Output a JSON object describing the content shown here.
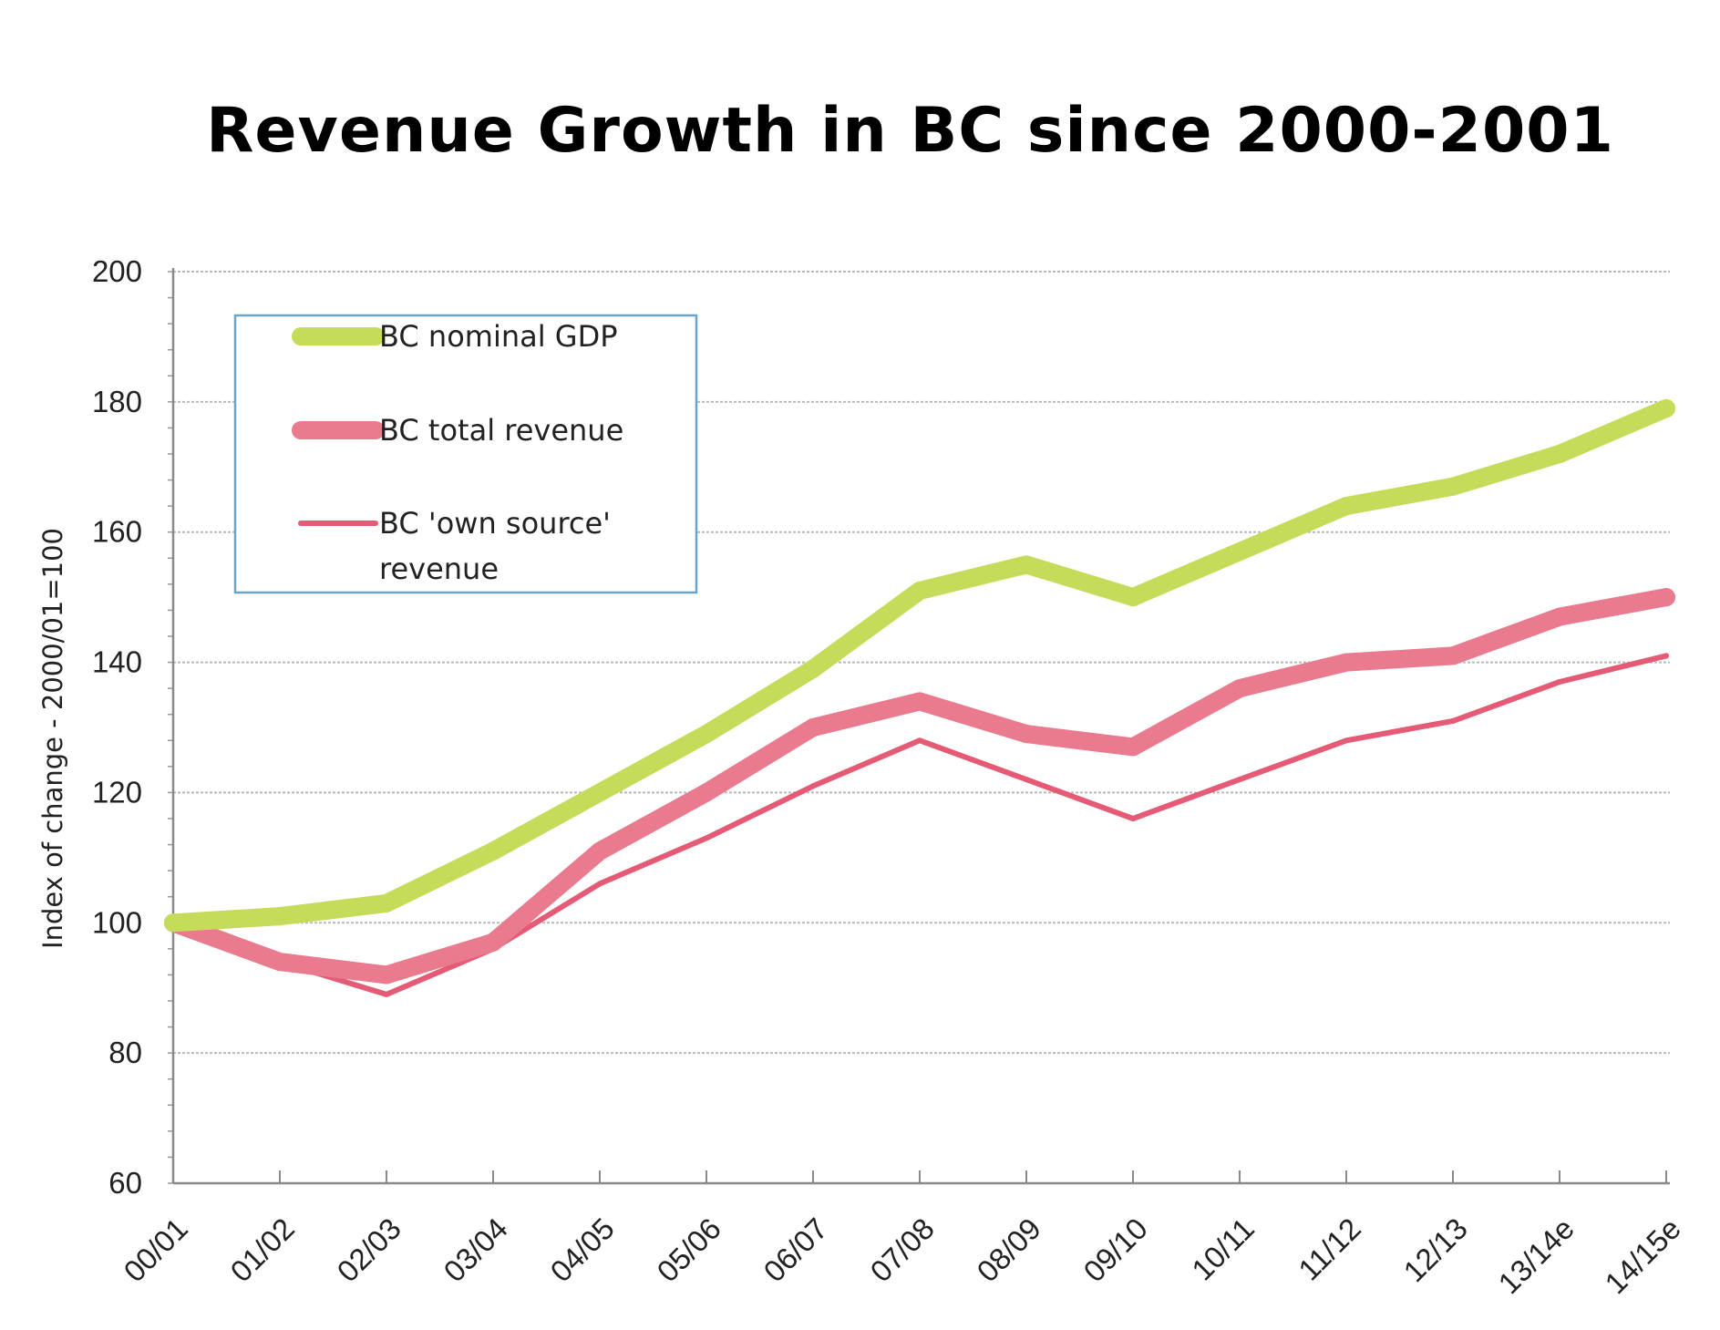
{
  "chart_data": {
    "type": "line",
    "title": "Revenue Growth in BC since 2000-2001",
    "ylabel": "Index of change  - 2000/01=100",
    "xlabel": "",
    "ylim": [
      60,
      200
    ],
    "yticks": [
      "60",
      "80",
      "100",
      "120",
      "140",
      "160",
      "180",
      "200"
    ],
    "grid": "horizontal",
    "legend_position": "top-left",
    "categories": [
      "00/01",
      "01/02",
      "02/03",
      "03/04",
      "04/05",
      "05/06",
      "06/07",
      "07/08",
      "08/09",
      "09/10",
      "10/11",
      "11/12",
      "12/13",
      "13/14e",
      "14/15e"
    ],
    "series": [
      {
        "name": "BC nominal GDP",
        "values": [
          100,
          101,
          103,
          111,
          120,
          129,
          139,
          151,
          155,
          150,
          157,
          164,
          167,
          172,
          179
        ],
        "color": "#c5dc5a"
      },
      {
        "name": "BC total revenue",
        "values": [
          100,
          94,
          92,
          97,
          111,
          120,
          130,
          134,
          129,
          127,
          136,
          140,
          141,
          147,
          150
        ],
        "color": "#ea7a8e"
      },
      {
        "name": "BC 'own source' revenue",
        "values": [
          100,
          94,
          89,
          96,
          106,
          113,
          121,
          128,
          122,
          116,
          122,
          128,
          131,
          137,
          141
        ],
        "color": "#e55a74"
      }
    ]
  }
}
